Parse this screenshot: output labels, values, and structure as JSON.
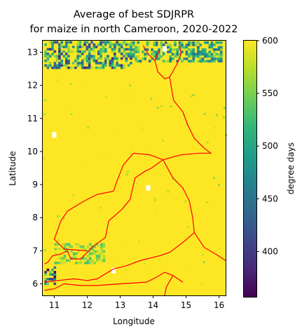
{
  "chart_data": {
    "type": "heatmap",
    "title_line1": "Average of best SDJRPR",
    "title_line2": "for maize in north Cameroon, 2020-2022",
    "xlabel": "Longitude",
    "ylabel": "Latitude",
    "xlim": [
      10.65,
      16.2
    ],
    "ylim": [
      5.65,
      13.35
    ],
    "xticks": [
      11,
      12,
      13,
      14,
      15,
      16
    ],
    "yticks": [
      6,
      7,
      8,
      9,
      10,
      11,
      12,
      13
    ],
    "colorbar": {
      "label": "degree days",
      "range": [
        357,
        600
      ],
      "ticks": [
        400,
        450,
        500,
        550,
        600
      ],
      "colormap": "viridis"
    },
    "field": {
      "dominant_value": 600,
      "low_regions": [
        {
          "lon": [
            10.7,
            13.3
          ],
          "lat": [
            12.5,
            13.3
          ],
          "value_range": [
            380,
            580
          ],
          "note": "northern band"
        },
        {
          "lon": [
            13.3,
            16.1
          ],
          "lat": [
            12.7,
            13.3
          ],
          "value_range": [
            430,
            580
          ]
        },
        {
          "lon": [
            10.7,
            11.0
          ],
          "lat": [
            5.9,
            6.5
          ],
          "value_range": [
            360,
            560
          ],
          "note": "southwest corner"
        },
        {
          "lon": [
            11.0,
            12.5
          ],
          "lat": [
            6.6,
            7.2
          ],
          "value_range": [
            520,
            590
          ]
        }
      ],
      "missing_spots": [
        {
          "lon": 11.0,
          "lat": 10.5
        },
        {
          "lon": 13.85,
          "lat": 8.9
        },
        {
          "lon": 12.8,
          "lat": 6.4
        },
        {
          "lon": 14.35,
          "lat": 13.1
        }
      ]
    },
    "boundary_color": "#ff0000"
  },
  "colors": {
    "viridis": [
      "#440154",
      "#482878",
      "#3e4989",
      "#31688e",
      "#26828e",
      "#1f9e89",
      "#35b779",
      "#6ece58",
      "#b5de2b",
      "#fde725"
    ]
  }
}
